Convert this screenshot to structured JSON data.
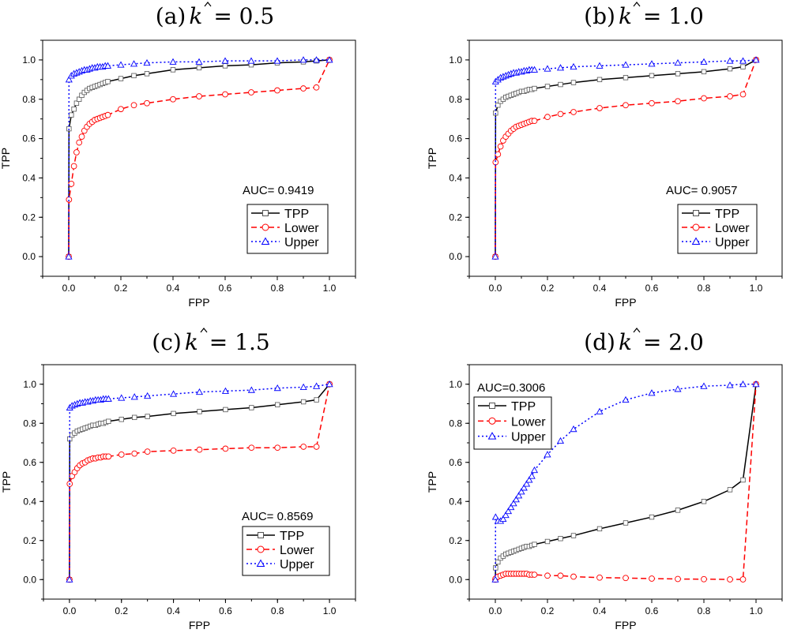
{
  "chart_data": [
    {
      "type": "line",
      "panel": "a",
      "title_prefix": "(a)",
      "title_var": "k",
      "title_value": "= 0.5",
      "xlabel": "FPP",
      "ylabel": "TPP",
      "xlim": [
        -0.1,
        1.1
      ],
      "ylim": [
        -0.1,
        1.1
      ],
      "xticks": [
        "0.0",
        "0.2",
        "0.4",
        "0.6",
        "0.8",
        "1.0"
      ],
      "yticks": [
        "0.0",
        "0.2",
        "0.4",
        "0.6",
        "0.8",
        "1.0"
      ],
      "auc": "AUC= 0.9419",
      "legend_position": "lower-right",
      "legend": [
        "TPP",
        "Lower",
        "Upper"
      ],
      "series": [
        {
          "name": "TPP",
          "color": "#000000",
          "marker": "square",
          "dash": "solid",
          "x": [
            0,
            0.001,
            0.01,
            0.02,
            0.03,
            0.04,
            0.05,
            0.06,
            0.07,
            0.08,
            0.09,
            0.1,
            0.11,
            0.12,
            0.13,
            0.14,
            0.15,
            0.2,
            0.25,
            0.3,
            0.4,
            0.5,
            0.6,
            0.7,
            0.8,
            0.9,
            0.95,
            1.0
          ],
          "y": [
            0,
            0.65,
            0.72,
            0.75,
            0.78,
            0.8,
            0.82,
            0.835,
            0.845,
            0.855,
            0.86,
            0.865,
            0.87,
            0.875,
            0.88,
            0.885,
            0.89,
            0.905,
            0.92,
            0.93,
            0.95,
            0.96,
            0.97,
            0.975,
            0.985,
            0.99,
            0.995,
            1.0
          ]
        },
        {
          "name": "Lower",
          "color": "#ff0000",
          "marker": "circle",
          "dash": "dashed",
          "x": [
            0,
            0.001,
            0.01,
            0.02,
            0.03,
            0.04,
            0.05,
            0.06,
            0.07,
            0.08,
            0.09,
            0.1,
            0.11,
            0.12,
            0.13,
            0.14,
            0.15,
            0.2,
            0.25,
            0.3,
            0.4,
            0.5,
            0.6,
            0.7,
            0.8,
            0.9,
            0.95,
            1.0
          ],
          "y": [
            0,
            0.29,
            0.37,
            0.46,
            0.53,
            0.58,
            0.61,
            0.64,
            0.66,
            0.675,
            0.685,
            0.695,
            0.7,
            0.705,
            0.71,
            0.715,
            0.72,
            0.75,
            0.77,
            0.78,
            0.8,
            0.815,
            0.825,
            0.835,
            0.845,
            0.855,
            0.86,
            1.0
          ]
        },
        {
          "name": "Upper",
          "color": "#0000ff",
          "marker": "triangle",
          "dash": "dotted",
          "x": [
            0,
            0.001,
            0.01,
            0.02,
            0.03,
            0.04,
            0.05,
            0.06,
            0.07,
            0.08,
            0.09,
            0.1,
            0.11,
            0.12,
            0.13,
            0.14,
            0.15,
            0.2,
            0.25,
            0.3,
            0.4,
            0.5,
            0.6,
            0.7,
            0.8,
            0.9,
            0.95,
            1.0
          ],
          "y": [
            0,
            0.9,
            0.92,
            0.93,
            0.935,
            0.94,
            0.945,
            0.95,
            0.95,
            0.955,
            0.96,
            0.96,
            0.965,
            0.965,
            0.965,
            0.97,
            0.97,
            0.975,
            0.98,
            0.985,
            0.99,
            0.99,
            0.995,
            0.995,
            0.995,
            1.0,
            1.0,
            1.0
          ]
        }
      ]
    },
    {
      "type": "line",
      "panel": "b",
      "title_prefix": "(b)",
      "title_var": "k",
      "title_value": "= 1.0",
      "xlabel": "FPP",
      "ylabel": "TPP",
      "xlim": [
        -0.1,
        1.1
      ],
      "ylim": [
        -0.1,
        1.1
      ],
      "xticks": [
        "0.0",
        "0.2",
        "0.4",
        "0.6",
        "0.8",
        "1.0"
      ],
      "yticks": [
        "0.0",
        "0.2",
        "0.4",
        "0.6",
        "0.8",
        "1.0"
      ],
      "auc": "AUC=  0.9057",
      "legend_position": "lower-right",
      "legend": [
        "TPP",
        "Lower",
        "Upper"
      ],
      "series": [
        {
          "name": "TPP",
          "color": "#000000",
          "marker": "square",
          "dash": "solid",
          "x": [
            0,
            0.001,
            0.01,
            0.02,
            0.03,
            0.04,
            0.05,
            0.06,
            0.07,
            0.08,
            0.09,
            0.1,
            0.11,
            0.12,
            0.13,
            0.14,
            0.15,
            0.2,
            0.25,
            0.3,
            0.4,
            0.5,
            0.6,
            0.7,
            0.8,
            0.9,
            0.95,
            1.0
          ],
          "y": [
            0,
            0.73,
            0.77,
            0.79,
            0.8,
            0.81,
            0.815,
            0.82,
            0.825,
            0.83,
            0.835,
            0.84,
            0.84,
            0.845,
            0.85,
            0.85,
            0.855,
            0.865,
            0.875,
            0.885,
            0.9,
            0.91,
            0.92,
            0.93,
            0.94,
            0.955,
            0.965,
            1.0
          ]
        },
        {
          "name": "Lower",
          "color": "#ff0000",
          "marker": "circle",
          "dash": "dashed",
          "x": [
            0,
            0.001,
            0.01,
            0.02,
            0.03,
            0.04,
            0.05,
            0.06,
            0.07,
            0.08,
            0.09,
            0.1,
            0.11,
            0.12,
            0.13,
            0.14,
            0.15,
            0.2,
            0.25,
            0.3,
            0.4,
            0.5,
            0.6,
            0.7,
            0.8,
            0.9,
            0.95,
            1.0
          ],
          "y": [
            0,
            0.48,
            0.52,
            0.56,
            0.59,
            0.61,
            0.625,
            0.64,
            0.65,
            0.66,
            0.665,
            0.67,
            0.675,
            0.68,
            0.685,
            0.69,
            0.69,
            0.71,
            0.725,
            0.735,
            0.755,
            0.77,
            0.78,
            0.79,
            0.805,
            0.815,
            0.825,
            1.0
          ]
        },
        {
          "name": "Upper",
          "color": "#0000ff",
          "marker": "triangle",
          "dash": "dotted",
          "x": [
            0,
            0.001,
            0.01,
            0.02,
            0.03,
            0.04,
            0.05,
            0.06,
            0.07,
            0.08,
            0.09,
            0.1,
            0.11,
            0.12,
            0.13,
            0.14,
            0.15,
            0.2,
            0.25,
            0.3,
            0.4,
            0.5,
            0.6,
            0.7,
            0.8,
            0.9,
            0.95,
            1.0
          ],
          "y": [
            0,
            0.89,
            0.9,
            0.91,
            0.915,
            0.92,
            0.925,
            0.93,
            0.935,
            0.935,
            0.94,
            0.94,
            0.945,
            0.945,
            0.95,
            0.95,
            0.95,
            0.955,
            0.96,
            0.965,
            0.97,
            0.975,
            0.98,
            0.985,
            0.99,
            0.995,
            0.995,
            1.0
          ]
        }
      ]
    },
    {
      "type": "line",
      "panel": "c",
      "title_prefix": "(c)",
      "title_var": "k",
      "title_value": "= 1.5",
      "xlabel": "FPP",
      "ylabel": "TPP",
      "xlim": [
        -0.1,
        1.1
      ],
      "ylim": [
        -0.1,
        1.1
      ],
      "xticks": [
        "0.0",
        "0.2",
        "0.4",
        "0.6",
        "0.8",
        "1.0"
      ],
      "yticks": [
        "0.0",
        "0.2",
        "0.4",
        "0.6",
        "0.8",
        "1.0"
      ],
      "auc": "AUC= 0.8569",
      "legend_position": "lower-right",
      "legend": [
        "TPP",
        "Lower",
        "Upper"
      ],
      "series": [
        {
          "name": "TPP",
          "color": "#000000",
          "marker": "square",
          "dash": "solid",
          "x": [
            0,
            0.001,
            0.01,
            0.02,
            0.03,
            0.04,
            0.05,
            0.06,
            0.07,
            0.08,
            0.09,
            0.1,
            0.11,
            0.12,
            0.13,
            0.14,
            0.15,
            0.2,
            0.25,
            0.3,
            0.4,
            0.5,
            0.6,
            0.7,
            0.8,
            0.9,
            0.95,
            1.0
          ],
          "y": [
            0,
            0.72,
            0.74,
            0.75,
            0.76,
            0.765,
            0.77,
            0.775,
            0.78,
            0.785,
            0.79,
            0.79,
            0.795,
            0.8,
            0.8,
            0.805,
            0.81,
            0.82,
            0.83,
            0.835,
            0.85,
            0.86,
            0.87,
            0.88,
            0.895,
            0.91,
            0.92,
            1.0
          ]
        },
        {
          "name": "Lower",
          "color": "#ff0000",
          "marker": "circle",
          "dash": "dashed",
          "x": [
            0,
            0.001,
            0.01,
            0.02,
            0.03,
            0.04,
            0.05,
            0.06,
            0.07,
            0.08,
            0.09,
            0.1,
            0.11,
            0.12,
            0.13,
            0.14,
            0.15,
            0.2,
            0.25,
            0.3,
            0.4,
            0.5,
            0.6,
            0.7,
            0.8,
            0.9,
            0.95,
            1.0
          ],
          "y": [
            0,
            0.49,
            0.53,
            0.55,
            0.57,
            0.585,
            0.595,
            0.6,
            0.61,
            0.615,
            0.62,
            0.62,
            0.625,
            0.625,
            0.63,
            0.63,
            0.63,
            0.64,
            0.645,
            0.655,
            0.66,
            0.665,
            0.67,
            0.675,
            0.675,
            0.68,
            0.68,
            1.0
          ]
        },
        {
          "name": "Upper",
          "color": "#0000ff",
          "marker": "triangle",
          "dash": "dotted",
          "x": [
            0,
            0.001,
            0.01,
            0.02,
            0.03,
            0.04,
            0.05,
            0.06,
            0.07,
            0.08,
            0.09,
            0.1,
            0.11,
            0.12,
            0.13,
            0.14,
            0.15,
            0.2,
            0.25,
            0.3,
            0.4,
            0.5,
            0.6,
            0.7,
            0.8,
            0.9,
            0.95,
            1.0
          ],
          "y": [
            0,
            0.88,
            0.89,
            0.895,
            0.9,
            0.905,
            0.905,
            0.91,
            0.91,
            0.915,
            0.915,
            0.92,
            0.92,
            0.92,
            0.925,
            0.925,
            0.925,
            0.93,
            0.935,
            0.94,
            0.95,
            0.96,
            0.965,
            0.97,
            0.98,
            0.985,
            0.99,
            1.0
          ]
        }
      ]
    },
    {
      "type": "line",
      "panel": "d",
      "title_prefix": "(d)",
      "title_var": "k",
      "title_value": "= 2.0",
      "xlabel": "FPP",
      "ylabel": "TPP",
      "xlim": [
        -0.1,
        1.1
      ],
      "ylim": [
        -0.1,
        1.1
      ],
      "xticks": [
        "0.0",
        "0.2",
        "0.4",
        "0.6",
        "0.8",
        "1.0"
      ],
      "yticks": [
        "0.0",
        "0.2",
        "0.4",
        "0.6",
        "0.8",
        "1.0"
      ],
      "auc": "AUC=0.3006",
      "legend_position": "top-left",
      "legend": [
        "TPP",
        "Lower",
        "Upper"
      ],
      "series": [
        {
          "name": "TPP",
          "color": "#000000",
          "marker": "square",
          "dash": "solid",
          "x": [
            0,
            0.001,
            0.01,
            0.02,
            0.03,
            0.04,
            0.05,
            0.06,
            0.07,
            0.08,
            0.09,
            0.1,
            0.11,
            0.12,
            0.13,
            0.14,
            0.15,
            0.2,
            0.25,
            0.3,
            0.4,
            0.5,
            0.6,
            0.7,
            0.8,
            0.9,
            0.95,
            1.0
          ],
          "y": [
            0,
            0.06,
            0.09,
            0.11,
            0.12,
            0.13,
            0.135,
            0.14,
            0.145,
            0.15,
            0.155,
            0.16,
            0.165,
            0.17,
            0.17,
            0.175,
            0.18,
            0.195,
            0.21,
            0.225,
            0.26,
            0.29,
            0.32,
            0.355,
            0.4,
            0.46,
            0.51,
            1.0
          ]
        },
        {
          "name": "Lower",
          "color": "#ff0000",
          "marker": "circle",
          "dash": "dashed",
          "x": [
            0,
            0.001,
            0.01,
            0.02,
            0.03,
            0.04,
            0.05,
            0.06,
            0.07,
            0.08,
            0.09,
            0.1,
            0.11,
            0.12,
            0.13,
            0.14,
            0.15,
            0.2,
            0.25,
            0.3,
            0.4,
            0.5,
            0.6,
            0.7,
            0.8,
            0.9,
            0.95,
            1.0
          ],
          "y": [
            0,
            0.005,
            0.015,
            0.02,
            0.025,
            0.03,
            0.03,
            0.03,
            0.03,
            0.03,
            0.03,
            0.03,
            0.03,
            0.03,
            0.025,
            0.025,
            0.025,
            0.02,
            0.02,
            0.015,
            0.01,
            0.008,
            0.005,
            0.003,
            0.002,
            0.001,
            0.001,
            1.0
          ]
        },
        {
          "name": "Upper",
          "color": "#0000ff",
          "marker": "triangle",
          "dash": "dotted",
          "x": [
            0,
            0.001,
            0.01,
            0.02,
            0.03,
            0.04,
            0.05,
            0.06,
            0.07,
            0.08,
            0.09,
            0.1,
            0.11,
            0.12,
            0.13,
            0.14,
            0.15,
            0.2,
            0.25,
            0.3,
            0.4,
            0.5,
            0.6,
            0.7,
            0.8,
            0.9,
            0.95,
            1.0
          ],
          "y": [
            0,
            0.32,
            0.3,
            0.3,
            0.31,
            0.33,
            0.35,
            0.37,
            0.39,
            0.41,
            0.43,
            0.45,
            0.47,
            0.49,
            0.51,
            0.53,
            0.56,
            0.64,
            0.71,
            0.77,
            0.86,
            0.92,
            0.955,
            0.975,
            0.99,
            0.995,
            1.0,
            1.0
          ]
        }
      ]
    }
  ]
}
